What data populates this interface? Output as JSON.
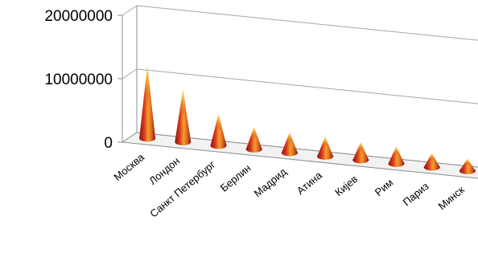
{
  "chart_data": {
    "type": "bar",
    "subtype": "3d-cone",
    "title": "",
    "xlabel": "",
    "ylabel": "",
    "categories": [
      "Москва",
      "Лондон",
      "Санкт Петербург",
      "Берлин",
      "Мадрид",
      "Атина",
      "Кијев",
      "Рим",
      "Париз",
      "Минск"
    ],
    "values": [
      11500000,
      8300000,
      5000000,
      3500000,
      3200000,
      3100000,
      2800000,
      2700000,
      2200000,
      1900000
    ],
    "ylim": [
      0,
      20000000
    ],
    "ytick_labels": [
      "0",
      "10000000",
      "20000000"
    ],
    "grid": true,
    "legend": "none",
    "colors": {
      "cone_tip": "#ffe36a",
      "cone_mid": "#f39a2a",
      "cone_base": "#c0201c",
      "cone_dark": "#7a0f12",
      "grid": "#a6a6a6",
      "axis": "#8c8c8c"
    }
  }
}
